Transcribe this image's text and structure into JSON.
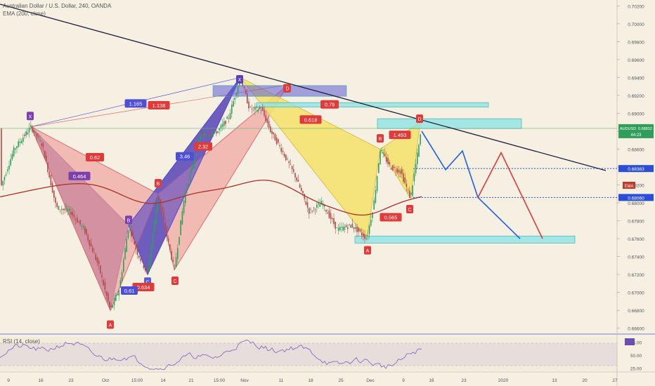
{
  "header": {
    "title": "Australian Dollar / U.S. Dollar, 240, OANDA",
    "ema_label": "EMA (200, close)",
    "rsi_label": "RSI (14, close)"
  },
  "colors": {
    "background": "#f6f0e3",
    "candle_up": "#2e9e5a",
    "candle_down": "#b24a4a",
    "ema": "#a93226",
    "trendline": "#1d1d3b",
    "pattern_purple": "#6a3d8f",
    "pattern_red": "#f0a4a0",
    "pattern_blue": "#4f4fd6",
    "pattern_yellow": "#f4e26a",
    "zone": "#8fe3e3",
    "projection_blue": "#1f5fe0",
    "projection_red": "#e03a3a",
    "rsi_line": "#8a6bbf"
  },
  "chart_data": [
    {
      "type": "candlestick",
      "title": "Australian Dollar / U.S. Dollar, 240, OANDA",
      "y_axis_ticks": [
        "0.70200",
        "0.70000",
        "0.69800",
        "0.69600",
        "0.69400",
        "0.69200",
        "0.69000",
        "0.68800",
        "0.68600",
        "0.68400",
        "0.68200",
        "0.68000",
        "0.67800",
        "0.67600",
        "0.67400",
        "0.67200",
        "0.67000",
        "0.66800",
        "0.66600"
      ],
      "ylim": [
        0.6655,
        0.7025
      ],
      "x_axis_ticks": [
        "9",
        "16",
        "23",
        "Oct",
        "15:00",
        "14",
        "21",
        "15:00",
        "Nov",
        "11",
        "18",
        "25",
        "Dec",
        "9",
        "16",
        "23",
        "2020",
        "13",
        "20",
        "27"
      ],
      "price_tag": {
        "label": "AUDUSD",
        "value": "0.68832",
        "countdown": "44:23"
      },
      "levels": [
        {
          "value": "0.68383"
        },
        {
          "value": "0.68060"
        }
      ],
      "ema_tag": "EMA",
      "pattern_points": [
        "X",
        "A",
        "B",
        "C",
        "D",
        "X",
        "D",
        "D",
        "A",
        "B",
        "C"
      ],
      "ratios": [
        "1.165",
        "1.138",
        "0.62",
        "0.464",
        "3.46",
        "2.32",
        "0.618",
        "0.618",
        "0.634",
        "0.79",
        "1.493",
        "0.565"
      ],
      "series": [
        {
          "name": "EMA (200, close)"
        }
      ]
    },
    {
      "type": "line",
      "title": "RSI (14, close)",
      "y_axis_ticks": [
        "75.00",
        "50.00",
        "25.00"
      ],
      "ylim": [
        20,
        85
      ]
    }
  ]
}
